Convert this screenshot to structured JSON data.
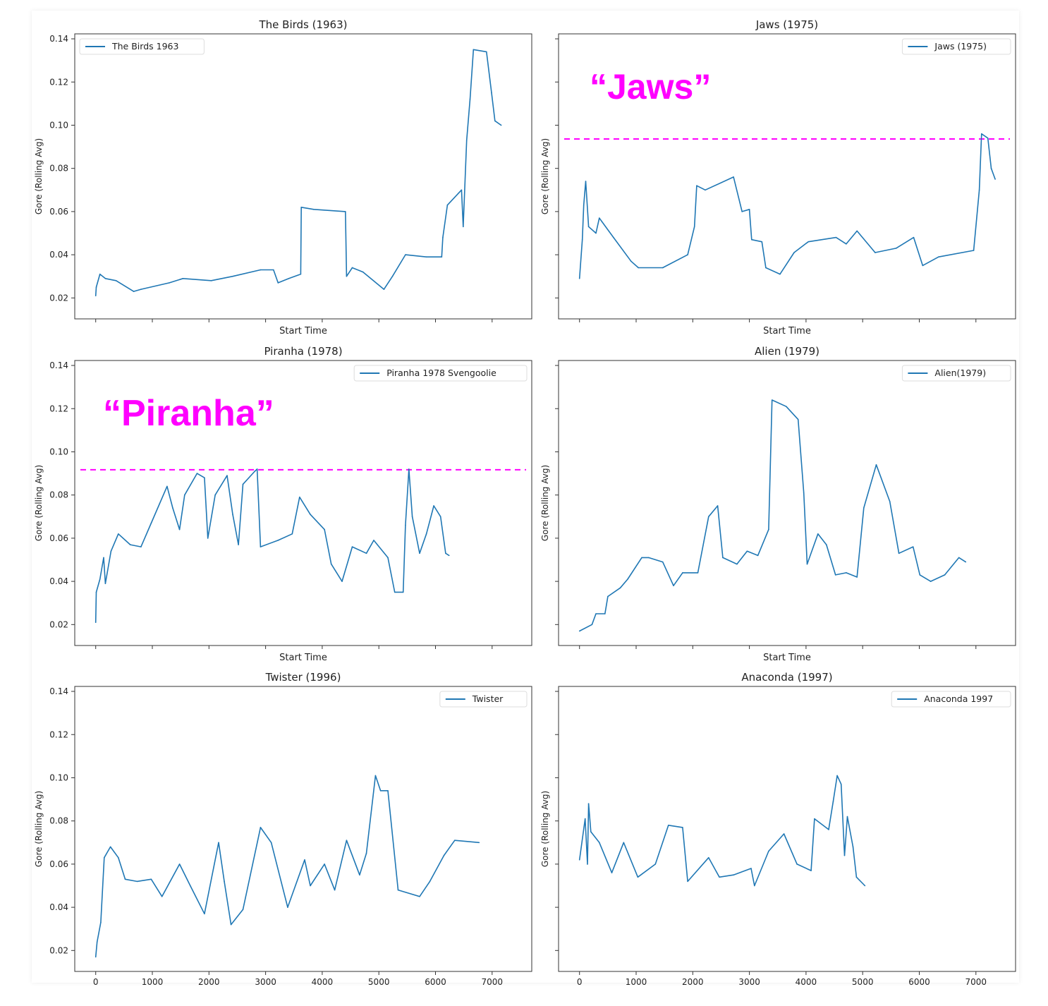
{
  "chart_data": [
    {
      "type": "line",
      "title": "The Birds (1963)",
      "legend": "The Birds 1963",
      "legend_loc": "upper-left",
      "xlabel": "Start Time",
      "ylabel": "Gore (Rolling Avg)",
      "show_yticklabels": true,
      "show_xticklabels": false,
      "show_xlabel": true,
      "x": [
        0,
        10,
        75,
        170,
        360,
        670,
        800,
        1300,
        1540,
        2040,
        2420,
        2910,
        3140,
        3220,
        3410,
        3620,
        3630,
        3850,
        4410,
        4430,
        4530,
        4720,
        5090,
        5240,
        5470,
        5840,
        6110,
        6130,
        6210,
        6460,
        6490,
        6550,
        6610,
        6670,
        6900,
        6990,
        7050,
        7160
      ],
      "y": [
        0.021,
        0.025,
        0.031,
        0.029,
        0.028,
        0.023,
        0.024,
        0.027,
        0.029,
        0.028,
        0.03,
        0.033,
        0.033,
        0.027,
        0.029,
        0.031,
        0.062,
        0.061,
        0.06,
        0.03,
        0.034,
        0.032,
        0.024,
        0.03,
        0.04,
        0.039,
        0.039,
        0.048,
        0.063,
        0.07,
        0.053,
        0.093,
        0.112,
        0.135,
        0.134,
        0.115,
        0.102,
        0.1
      ]
    },
    {
      "type": "line",
      "title": "Jaws (1975)",
      "legend": "Jaws (1975)",
      "legend_loc": "upper-right",
      "xlabel": "Start Time",
      "ylabel": "Gore (Rolling Avg)",
      "show_yticklabels": false,
      "show_xticklabels": false,
      "show_xlabel": true,
      "hline": 0.0936,
      "annotation": "“Jaws”",
      "x": [
        0,
        50,
        75,
        110,
        160,
        290,
        350,
        600,
        910,
        1040,
        1470,
        1910,
        2030,
        2070,
        2220,
        2720,
        2870,
        3000,
        3040,
        3220,
        3290,
        3540,
        3790,
        4040,
        4530,
        4710,
        4900,
        5220,
        5590,
        5900,
        6060,
        6340,
        6960,
        7060,
        7100,
        7210,
        7270,
        7340
      ],
      "y": [
        0.029,
        0.047,
        0.063,
        0.074,
        0.053,
        0.05,
        0.057,
        0.048,
        0.037,
        0.034,
        0.034,
        0.04,
        0.053,
        0.072,
        0.07,
        0.076,
        0.06,
        0.061,
        0.047,
        0.046,
        0.034,
        0.031,
        0.041,
        0.046,
        0.048,
        0.045,
        0.051,
        0.041,
        0.043,
        0.048,
        0.035,
        0.039,
        0.042,
        0.07,
        0.096,
        0.094,
        0.08,
        0.075
      ]
    },
    {
      "type": "line",
      "title": "Piranha (1978)",
      "legend": "Piranha 1978 Svengoolie",
      "legend_loc": "upper-right",
      "xlabel": "Start Time",
      "ylabel": "Gore (Rolling Avg)",
      "show_yticklabels": true,
      "show_xticklabels": false,
      "show_xlabel": true,
      "hline": 0.0917,
      "annotation": "“Piranha”",
      "x": [
        0,
        10,
        75,
        140,
        170,
        270,
        400,
        610,
        800,
        980,
        1260,
        1360,
        1480,
        1570,
        1790,
        1920,
        1980,
        2110,
        2320,
        2420,
        2520,
        2600,
        2810,
        2850,
        2910,
        3220,
        3470,
        3600,
        3790,
        4040,
        4160,
        4350,
        4530,
        4780,
        4910,
        5160,
        5280,
        5430,
        5470,
        5530,
        5590,
        5720,
        5840,
        5970,
        6090,
        6180,
        6240
      ],
      "y": [
        0.021,
        0.035,
        0.041,
        0.051,
        0.039,
        0.054,
        0.062,
        0.057,
        0.056,
        0.067,
        0.084,
        0.074,
        0.064,
        0.08,
        0.09,
        0.088,
        0.06,
        0.08,
        0.089,
        0.071,
        0.057,
        0.085,
        0.091,
        0.092,
        0.056,
        0.059,
        0.062,
        0.079,
        0.071,
        0.064,
        0.048,
        0.04,
        0.056,
        0.053,
        0.059,
        0.051,
        0.035,
        0.035,
        0.066,
        0.092,
        0.07,
        0.053,
        0.062,
        0.075,
        0.07,
        0.053,
        0.052
      ]
    },
    {
      "type": "line",
      "title": "Alien (1979)",
      "legend": "Alien(1979)",
      "legend_loc": "upper-right",
      "xlabel": "Start Time",
      "ylabel": "Gore (Rolling Avg)",
      "show_yticklabels": false,
      "show_xticklabels": false,
      "show_xlabel": true,
      "x": [
        0,
        220,
        290,
        450,
        500,
        720,
        850,
        1100,
        1220,
        1470,
        1660,
        1820,
        2090,
        2280,
        2440,
        2530,
        2780,
        2960,
        3150,
        3340,
        3400,
        3650,
        3860,
        3960,
        4020,
        4210,
        4360,
        4520,
        4710,
        4900,
        5020,
        5240,
        5480,
        5640,
        5890,
        6010,
        6200,
        6450,
        6700,
        6820
      ],
      "y": [
        0.017,
        0.02,
        0.025,
        0.025,
        0.033,
        0.037,
        0.041,
        0.051,
        0.051,
        0.049,
        0.038,
        0.044,
        0.044,
        0.07,
        0.075,
        0.051,
        0.048,
        0.054,
        0.052,
        0.064,
        0.124,
        0.121,
        0.115,
        0.081,
        0.048,
        0.062,
        0.057,
        0.043,
        0.044,
        0.042,
        0.074,
        0.094,
        0.077,
        0.053,
        0.056,
        0.043,
        0.04,
        0.043,
        0.051,
        0.049
      ]
    },
    {
      "type": "line",
      "title": "Twister (1996)",
      "legend": "Twister",
      "legend_loc": "upper-right",
      "xlabel": "",
      "ylabel": "Gore (Rolling Avg)",
      "show_yticklabels": true,
      "show_xticklabels": true,
      "show_xlabel": false,
      "x": [
        0,
        25,
        90,
        150,
        260,
        400,
        520,
        730,
        980,
        1170,
        1480,
        1670,
        1920,
        2170,
        2270,
        2390,
        2600,
        2910,
        3100,
        3390,
        3690,
        3790,
        4040,
        4220,
        4430,
        4660,
        4780,
        4940,
        5030,
        5160,
        5340,
        5720,
        5900,
        6150,
        6340,
        6770
      ],
      "y": [
        0.017,
        0.024,
        0.033,
        0.063,
        0.068,
        0.063,
        0.053,
        0.052,
        0.053,
        0.045,
        0.06,
        0.05,
        0.037,
        0.07,
        0.052,
        0.032,
        0.039,
        0.077,
        0.07,
        0.04,
        0.062,
        0.05,
        0.06,
        0.048,
        0.071,
        0.055,
        0.065,
        0.101,
        0.094,
        0.094,
        0.048,
        0.045,
        0.052,
        0.064,
        0.071,
        0.07
      ]
    },
    {
      "type": "line",
      "title": "Anaconda (1997)",
      "legend": "Anaconda 1997",
      "legend_loc": "upper-right",
      "xlabel": "",
      "ylabel": "Gore (Rolling Avg)",
      "show_yticklabels": false,
      "show_xticklabels": true,
      "show_xlabel": false,
      "x": [
        0,
        100,
        140,
        160,
        200,
        350,
        570,
        780,
        1030,
        1340,
        1570,
        1820,
        1910,
        2280,
        2470,
        2720,
        3030,
        3090,
        3340,
        3610,
        3840,
        4090,
        4150,
        4400,
        4480,
        4550,
        4620,
        4680,
        4730,
        4830,
        4890,
        5040
      ],
      "y": [
        0.062,
        0.081,
        0.06,
        0.088,
        0.075,
        0.07,
        0.056,
        0.07,
        0.054,
        0.06,
        0.078,
        0.077,
        0.052,
        0.063,
        0.054,
        0.055,
        0.058,
        0.05,
        0.066,
        0.074,
        0.06,
        0.057,
        0.081,
        0.076,
        0.089,
        0.101,
        0.097,
        0.064,
        0.082,
        0.068,
        0.054,
        0.05
      ]
    }
  ],
  "axes": {
    "xlim": [
      -370,
      7700
    ],
    "ylim": [
      0.0103,
      0.1423
    ],
    "xticks": [
      0,
      1000,
      2000,
      3000,
      4000,
      5000,
      6000,
      7000
    ],
    "yticks": [
      0.02,
      0.04,
      0.06,
      0.08,
      0.1,
      0.12,
      0.14
    ],
    "ytick_labels": [
      "0.02",
      "0.04",
      "0.06",
      "0.08",
      "0.10",
      "0.12",
      "0.14"
    ]
  },
  "colors": {
    "line": "#1f77b4",
    "hline": "#ff00ff",
    "annotation": "#ff00ff"
  }
}
